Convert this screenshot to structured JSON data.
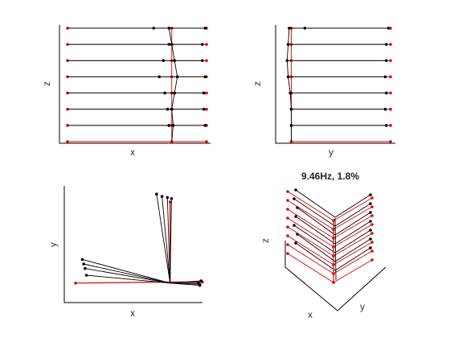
{
  "figure": {
    "title": "9.46Hz, 1.8%"
  },
  "colors": {
    "deformed": "#000000",
    "undeformed": "#e00000",
    "axis": "#000000",
    "background": "#ffffff"
  },
  "chart_data": [
    {
      "type": "line",
      "view": "x-z elevation",
      "xlabel": "x",
      "ylabel": "z",
      "xlim": [
        0,
        10
      ],
      "ylim": [
        0,
        7
      ],
      "grid": false,
      "undeformed": {
        "floors": [
          0,
          1,
          2,
          3,
          4,
          5,
          6,
          7
        ],
        "x_positions": [
          0,
          7.5,
          10
        ],
        "column_x": 7.5
      },
      "deformed": {
        "floors": [
          1,
          2,
          3,
          4,
          5,
          6,
          7
        ],
        "x_positions": [
          [
            0,
            7.3,
            7.6,
            9.9
          ],
          [
            0,
            7.2,
            7.5,
            9.8
          ],
          [
            0,
            7.0,
            7.7,
            9.8
          ],
          [
            0,
            6.6,
            7.9,
            9.9
          ],
          [
            0,
            6.9,
            7.7,
            9.7
          ],
          [
            0,
            7.3,
            7.5,
            9.7
          ],
          [
            0,
            6.2,
            7.3,
            9.9
          ]
        ]
      }
    },
    {
      "type": "line",
      "view": "y-z elevation",
      "xlabel": "y",
      "ylabel": "z",
      "xlim": [
        0,
        10
      ],
      "ylim": [
        0,
        7
      ],
      "grid": false,
      "undeformed": {
        "floors": [
          0,
          1,
          2,
          3,
          4,
          5,
          6,
          7
        ],
        "y_positions": [
          0,
          0.5,
          10
        ],
        "column_y": 0.5
      },
      "deformed": {
        "floors": [
          1,
          2,
          3,
          4,
          5,
          6,
          7
        ],
        "y_positions": [
          [
            0,
            0.5,
            9.6
          ],
          [
            0,
            0.5,
            9.5
          ],
          [
            0,
            0.4,
            9.6
          ],
          [
            0,
            0.2,
            9.5
          ],
          [
            0,
            0.1,
            9.6
          ],
          [
            0,
            0.2,
            9.6
          ],
          [
            0,
            0.3,
            1.8,
            9.8
          ]
        ]
      }
    },
    {
      "type": "line",
      "view": "x-y plan",
      "xlabel": "x",
      "ylabel": "y",
      "xlim": [
        0,
        10
      ],
      "ylim": [
        0,
        10
      ],
      "grid": false,
      "undeformed": {
        "left": [
          0.6,
          1.3
        ],
        "center": [
          7.6,
          1.4
        ],
        "right": [
          10,
          1.4
        ],
        "top": [
          7.6,
          8.5
        ]
      },
      "deformed": {
        "center": [
          7.6,
          1.3
        ],
        "tips": [
          [
            6.6,
            9.2
          ],
          [
            7.0,
            9.0
          ],
          [
            7.4,
            8.9
          ],
          [
            7.7,
            8.8
          ],
          [
            1.1,
            3.4
          ],
          [
            1.2,
            3.0
          ],
          [
            1.3,
            2.6
          ],
          [
            1.4,
            2.0
          ],
          [
            9.8,
            1.1
          ],
          [
            9.7,
            1.3
          ],
          [
            9.9,
            1.5
          ],
          [
            9.8,
            1.2
          ]
        ]
      }
    },
    {
      "type": "line",
      "view": "3D isometric",
      "title": "9.46Hz, 1.8%",
      "xlabel": "x",
      "ylabel": "y",
      "zlabel": "z",
      "floors": [
        0,
        1,
        2,
        3,
        4,
        5,
        6,
        7
      ],
      "grid": false
    }
  ]
}
